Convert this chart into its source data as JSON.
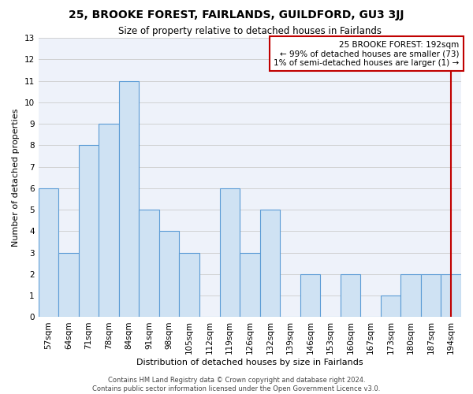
{
  "title": "25, BROOKE FOREST, FAIRLANDS, GUILDFORD, GU3 3JJ",
  "subtitle": "Size of property relative to detached houses in Fairlands",
  "xlabel": "Distribution of detached houses by size in Fairlands",
  "ylabel": "Number of detached properties",
  "categories": [
    "57sqm",
    "64sqm",
    "71sqm",
    "78sqm",
    "84sqm",
    "91sqm",
    "98sqm",
    "105sqm",
    "112sqm",
    "119sqm",
    "126sqm",
    "132sqm",
    "139sqm",
    "146sqm",
    "153sqm",
    "160sqm",
    "167sqm",
    "173sqm",
    "180sqm",
    "187sqm",
    "194sqm"
  ],
  "values": [
    6,
    3,
    8,
    9,
    11,
    5,
    4,
    3,
    0,
    6,
    3,
    5,
    0,
    2,
    0,
    2,
    0,
    1,
    2,
    2,
    2
  ],
  "bar_color": "#cfe2f3",
  "bar_edge_color": "#5b9bd5",
  "highlight_index": 20,
  "highlight_line_color": "#c00000",
  "annotation_box_color": "#c00000",
  "annotation_line1": "25 BROOKE FOREST: 192sqm",
  "annotation_line2": "← 99% of detached houses are smaller (73)",
  "annotation_line3": "1% of semi-detached houses are larger (1) →",
  "ylim": [
    0,
    13
  ],
  "yticks": [
    0,
    1,
    2,
    3,
    4,
    5,
    6,
    7,
    8,
    9,
    10,
    11,
    12,
    13
  ],
  "grid_color": "#cccccc",
  "plot_bg_color": "#eef2fa",
  "footer": "Contains HM Land Registry data © Crown copyright and database right 2024.\nContains public sector information licensed under the Open Government Licence v3.0.",
  "title_fontsize": 10,
  "subtitle_fontsize": 8.5,
  "xlabel_fontsize": 8,
  "ylabel_fontsize": 8,
  "tick_fontsize": 7.5,
  "annotation_fontsize": 7.5,
  "footer_fontsize": 6
}
